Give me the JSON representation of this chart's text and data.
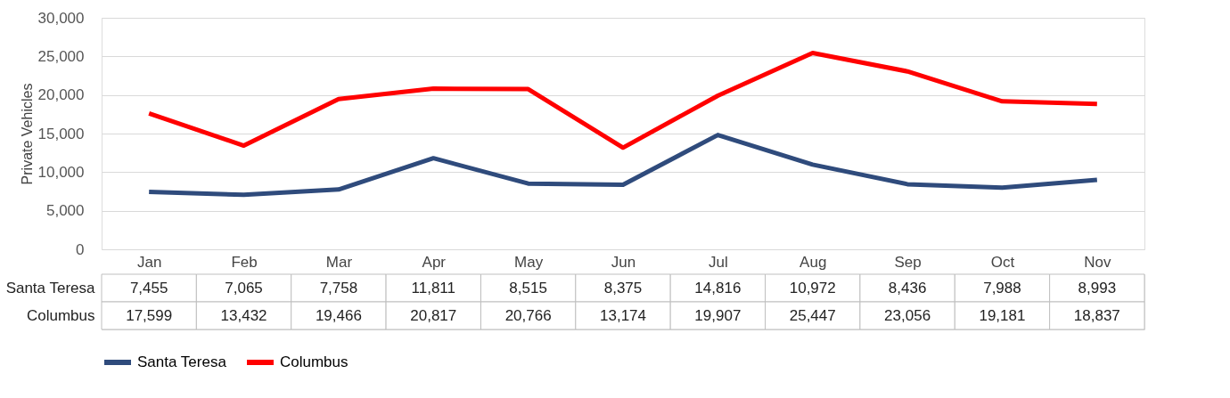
{
  "chart_data": {
    "type": "line",
    "ylabel": "Private Vehicles",
    "categories": [
      "Jan",
      "Feb",
      "Mar",
      "Apr",
      "May",
      "Jun",
      "Jul",
      "Aug",
      "Sep",
      "Oct",
      "Nov"
    ],
    "series": [
      {
        "name": "Santa Teresa",
        "color": "#2f4b7c",
        "values": [
          7455,
          7065,
          7758,
          11811,
          8515,
          8375,
          14816,
          10972,
          8436,
          7988,
          8993
        ],
        "value_labels": [
          "7,455",
          "7,065",
          "7,758",
          "11,811",
          "8,515",
          "8,375",
          "14,816",
          "10,972",
          "8,436",
          "7,988",
          "8,993"
        ]
      },
      {
        "name": "Columbus",
        "color": "#ff0000",
        "values": [
          17599,
          13432,
          19466,
          20817,
          20766,
          13174,
          19907,
          25447,
          23056,
          19181,
          18837
        ],
        "value_labels": [
          "17,599",
          "13,432",
          "19,466",
          "20,817",
          "20,766",
          "13,174",
          "19,907",
          "25,447",
          "23,056",
          "19,181",
          "18,837"
        ]
      }
    ],
    "ylim": [
      0,
      30000
    ],
    "yticks": [
      0,
      {
        "value": 5000,
        "label": "5,000"
      },
      {
        "value": 10000,
        "label": "10,000"
      },
      {
        "value": 15000,
        "label": "15,000"
      },
      {
        "value": 20000,
        "label": "20,000"
      },
      {
        "value": 25000,
        "label": "25,000"
      },
      {
        "value": 30000,
        "label": "30,000"
      }
    ],
    "grid": "y",
    "legend": "bottom",
    "marker": "none",
    "line_style": "solid"
  }
}
